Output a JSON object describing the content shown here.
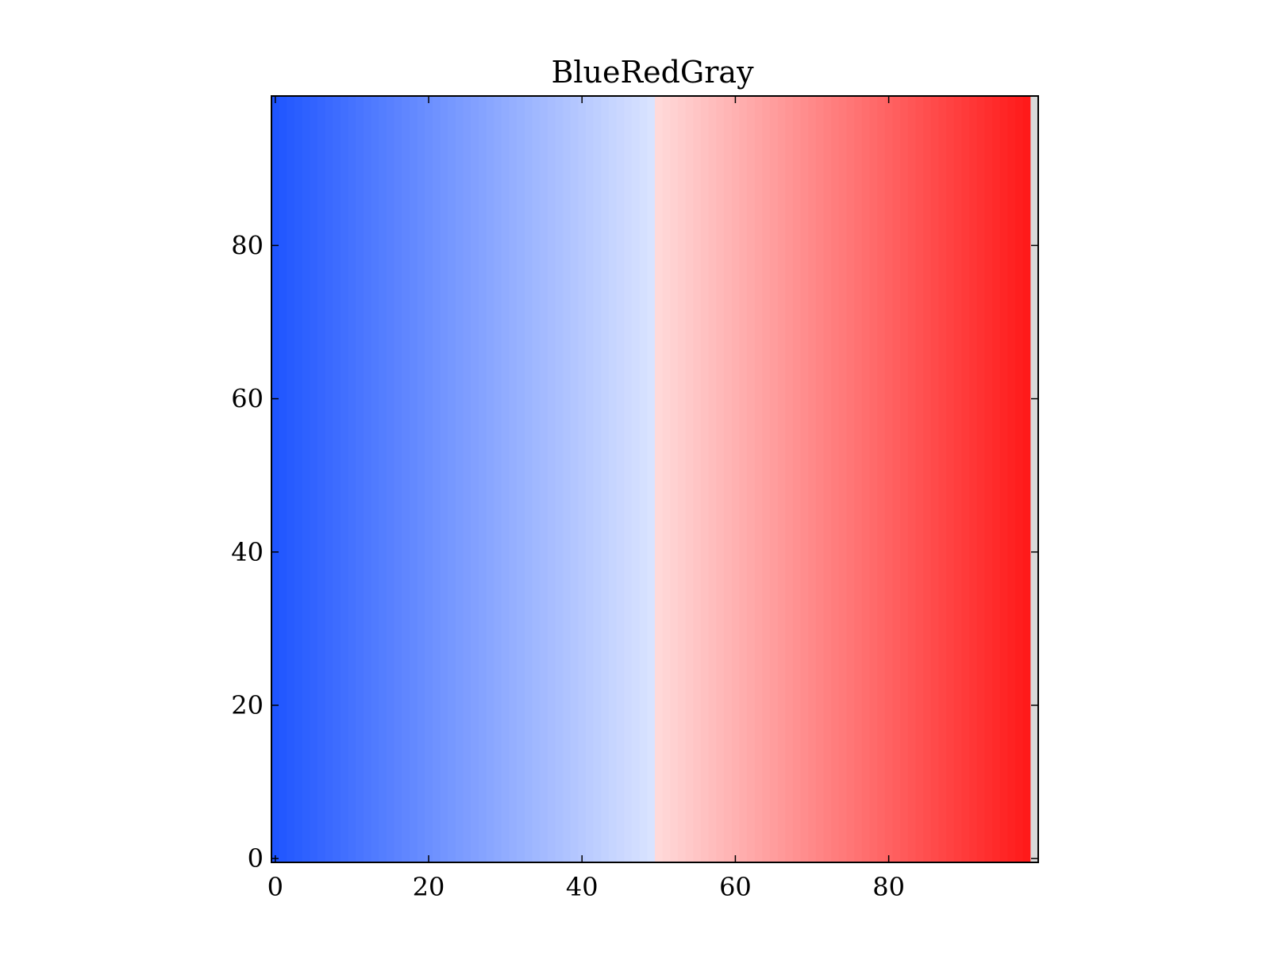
{
  "chart_data": {
    "type": "heatmap",
    "title": "BlueRedGray",
    "xlabel": "",
    "ylabel": "",
    "xlim": [
      -0.5,
      99.5
    ],
    "ylim": [
      -0.5,
      99.5
    ],
    "x_ticks": [
      0,
      20,
      40,
      60,
      80
    ],
    "y_ticks": [
      0,
      20,
      40,
      60,
      80
    ],
    "x_tick_labels": [
      "0",
      "20",
      "40",
      "60",
      "80"
    ],
    "y_tick_labels": [
      "0",
      "20",
      "40",
      "60",
      "80"
    ],
    "grid": false,
    "colormap": {
      "name": "BlueRedGray",
      "stops": [
        {
          "value": 0,
          "color": "#1f55ff"
        },
        {
          "value": 49,
          "color": "#d9e3ff"
        },
        {
          "value": 50,
          "color": "#ffd9d9"
        },
        {
          "value": 98,
          "color": "#ff1a1a"
        },
        {
          "value": 99,
          "color": "#d9d9d9"
        }
      ]
    },
    "columns": 100,
    "rows": 100,
    "cell_value_rule": "value equals column index (0-99), constant along y"
  }
}
